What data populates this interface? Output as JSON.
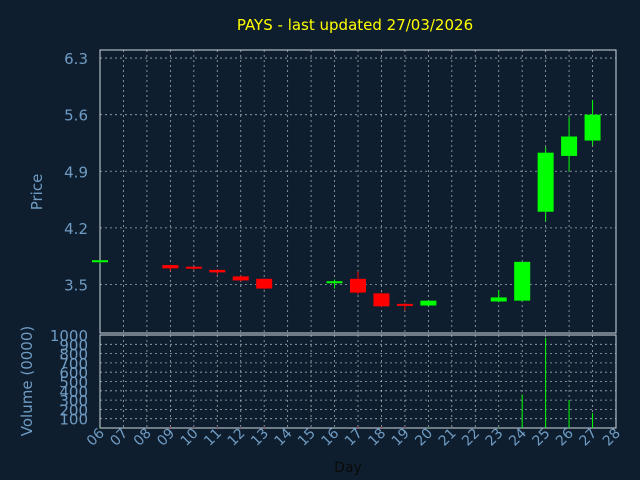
{
  "chart_data": {
    "type": "candlestick",
    "title": "PAYS - last updated 27/03/2026",
    "xlabel": "Day",
    "price_panel": {
      "ylabel": "Price",
      "yticks": [
        "6.3",
        "5.6",
        "4.9",
        "4.2",
        "3.5"
      ],
      "ylim": [
        2.9,
        6.4
      ],
      "grid": true
    },
    "volume_panel": {
      "ylabel": "Volume (0000)",
      "yticks": [
        "1000",
        "900",
        "800",
        "700",
        "600",
        "500",
        "400",
        "300",
        "200",
        "100"
      ],
      "ylim": [
        0,
        1000
      ],
      "grid": true
    },
    "x_tick_labels": [
      "06",
      "07",
      "08",
      "09",
      "10",
      "11",
      "12",
      "13",
      "14",
      "15",
      "16",
      "17",
      "18",
      "19",
      "20",
      "21",
      "22",
      "23",
      "24",
      "25",
      "26",
      "27",
      "28"
    ],
    "colors": {
      "background": "#0f1e2e",
      "title": "#ffff00",
      "axis_text": "#6f9cc4",
      "grid": "#cfd8e0",
      "up": "#00ff00",
      "down": "#ff0000"
    },
    "candles": [
      {
        "day": "06",
        "open": 3.78,
        "high": 3.8,
        "low": 3.76,
        "close": 3.8,
        "volume": 5
      },
      {
        "day": "09",
        "open": 3.74,
        "high": 3.74,
        "low": 3.67,
        "close": 3.7,
        "volume": 8
      },
      {
        "day": "10",
        "open": 3.72,
        "high": 3.72,
        "low": 3.68,
        "close": 3.7,
        "volume": 5
      },
      {
        "day": "11",
        "open": 3.68,
        "high": 3.69,
        "low": 3.62,
        "close": 3.65,
        "volume": 6
      },
      {
        "day": "12",
        "open": 3.6,
        "high": 3.61,
        "low": 3.54,
        "close": 3.55,
        "volume": 5
      },
      {
        "day": "13",
        "open": 3.57,
        "high": 3.57,
        "low": 3.44,
        "close": 3.45,
        "volume": 8
      },
      {
        "day": "16",
        "open": 3.52,
        "high": 3.56,
        "low": 3.45,
        "close": 3.54,
        "volume": 3
      },
      {
        "day": "17",
        "open": 3.57,
        "high": 3.66,
        "low": 3.38,
        "close": 3.4,
        "volume": 10
      },
      {
        "day": "18",
        "open": 3.39,
        "high": 3.4,
        "low": 3.22,
        "close": 3.23,
        "volume": 8
      },
      {
        "day": "19",
        "open": 3.26,
        "high": 3.27,
        "low": 3.18,
        "close": 3.25,
        "volume": 5
      },
      {
        "day": "20",
        "open": 3.24,
        "high": 3.3,
        "low": 3.23,
        "close": 3.3,
        "volume": 6
      },
      {
        "day": "23",
        "open": 3.29,
        "high": 3.43,
        "low": 3.28,
        "close": 3.34,
        "volume": 6
      },
      {
        "day": "24",
        "open": 3.3,
        "high": 3.78,
        "low": 3.29,
        "close": 3.78,
        "volume": 360
      },
      {
        "day": "25",
        "open": 4.4,
        "high": 5.2,
        "low": 4.28,
        "close": 5.13,
        "volume": 970
      },
      {
        "day": "26",
        "open": 5.09,
        "high": 5.57,
        "low": 4.9,
        "close": 5.33,
        "volume": 300
      },
      {
        "day": "27",
        "open": 5.28,
        "high": 5.78,
        "low": 5.22,
        "close": 5.6,
        "volume": 160
      }
    ]
  }
}
